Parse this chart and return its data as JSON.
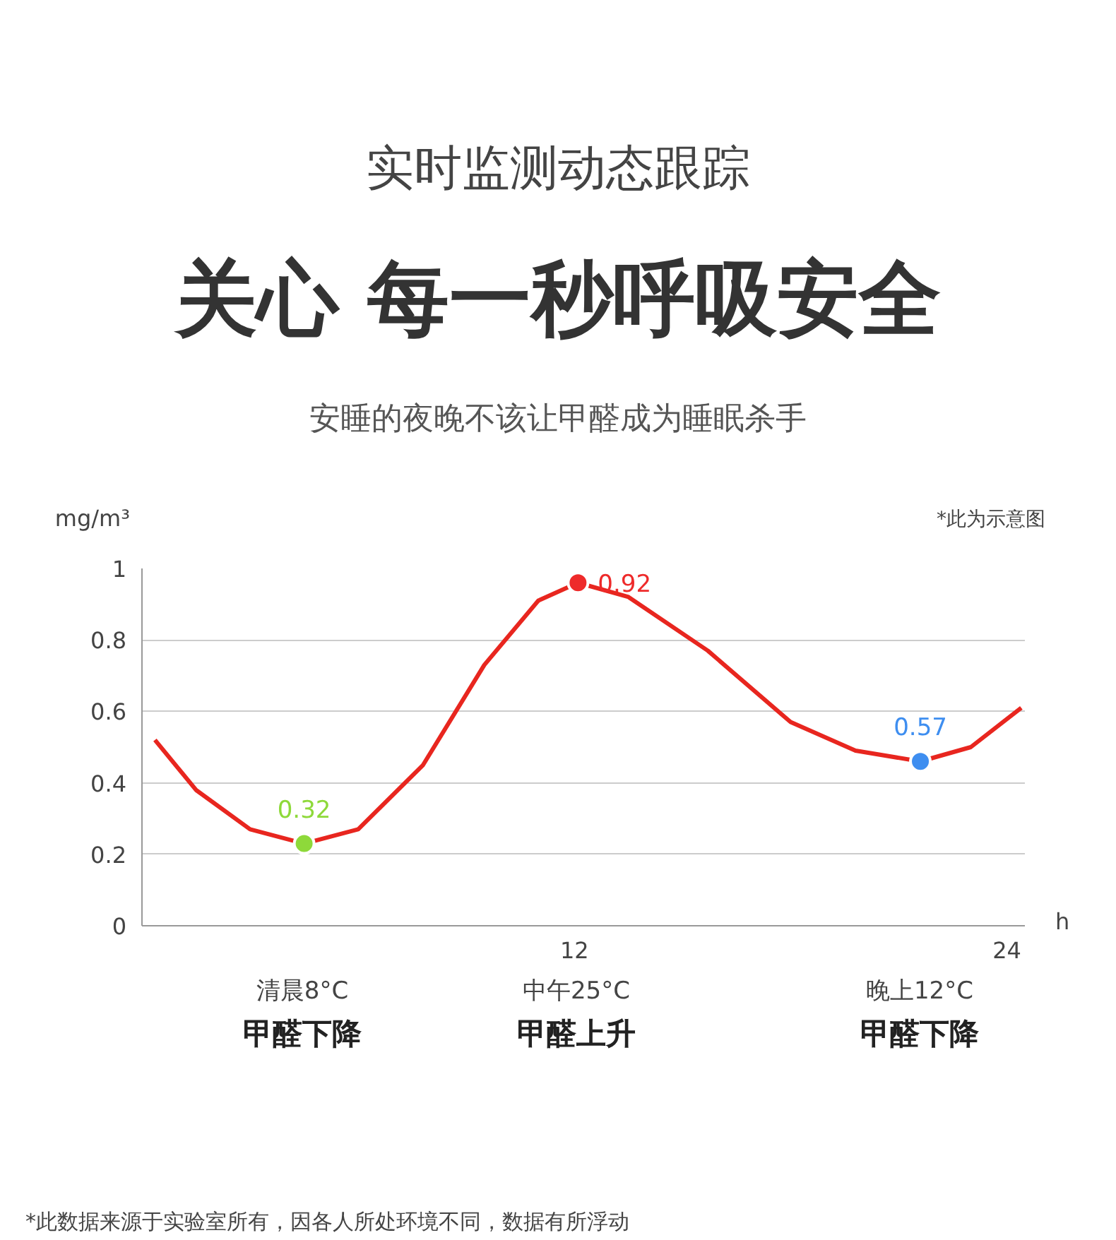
{
  "chart_data": {
    "type": "line",
    "title": "关心 每一秒呼吸安全",
    "subtitle": "安睡的夜晚不该让甲醛成为睡眠杀手",
    "xlabel": "h",
    "ylabel": "mg/m³",
    "xlim": [
      0,
      24.5
    ],
    "xticks": [
      12,
      24
    ],
    "ylim": [
      0,
      1
    ],
    "yticks": [
      0,
      0.2,
      0.4,
      0.6,
      0.8,
      1
    ],
    "grid": "y",
    "series": [
      {
        "type": "line",
        "color": "#e8261f",
        "marker": "none",
        "line_style": "solid",
        "x": [
          0.36,
          1.5,
          3,
          4.5,
          6,
          7.8,
          9.5,
          11,
          12.1,
          13.5,
          15.7,
          18,
          19.8,
          21.6,
          23,
          24.4
        ],
        "values": [
          0.52,
          0.38,
          0.27,
          0.23,
          0.27,
          0.45,
          0.73,
          0.91,
          0.96,
          0.92,
          0.77,
          0.57,
          0.49,
          0.46,
          0.5,
          0.61
        ]
      },
      {
        "type": "scatter",
        "marker": "circle",
        "colors": [
          "#8ed93a",
          "#ee2a2a",
          "#3e8ef0"
        ],
        "x": [
          4.5,
          12.1,
          21.6
        ],
        "values": [
          0.23,
          0.96,
          0.46
        ]
      }
    ],
    "annotations": [
      "实时监测动态跟踪",
      "*此为示意图",
      "*此数据来源于实验室所有，因各人所处环境不同，数据有所浮动",
      {
        "text": "0.32",
        "x": 4.5,
        "y": 0.23
      },
      {
        "text": "0.92",
        "x": 12.1,
        "y": 0.96
      },
      {
        "text": "0.57",
        "x": 21.6,
        "y": 0.46
      },
      "清晨8°C\n甲醛下降",
      "中午25°C\n甲醛上升",
      "晚上12°C\n甲醛下降"
    ]
  }
}
